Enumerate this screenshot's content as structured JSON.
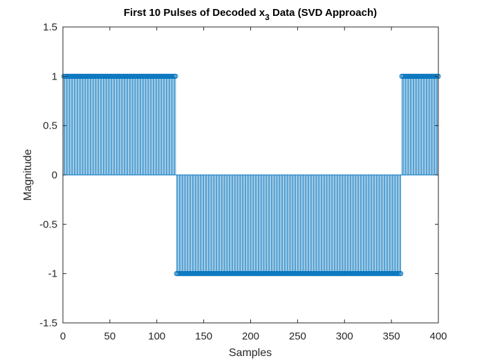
{
  "chart_data": {
    "type": "stem",
    "title": "First 10 Pulses of Decoded x",
    "title_subscript": "3",
    "title_suffix": " Data (SVD Approach)",
    "xlabel": "Samples",
    "ylabel": "Magnitude",
    "xlim": [
      0,
      400
    ],
    "ylim": [
      -1.5,
      1.5
    ],
    "xticks": [
      0,
      50,
      100,
      150,
      200,
      250,
      300,
      350,
      400
    ],
    "yticks": [
      -1.5,
      -1,
      -0.5,
      0,
      0.5,
      1,
      1.5
    ],
    "xtick_labels": [
      "0",
      "50",
      "100",
      "150",
      "200",
      "250",
      "300",
      "350",
      "400"
    ],
    "ytick_labels": [
      "-1.5",
      "-1",
      "-0.5",
      "0",
      "0.5",
      "1",
      "1.5"
    ],
    "grid": false,
    "color": "#0072BD",
    "segments": [
      {
        "x_start": 1,
        "x_end": 120,
        "value": 1
      },
      {
        "x_start": 121,
        "x_end": 360,
        "value": -1
      },
      {
        "x_start": 361,
        "x_end": 400,
        "value": 1
      }
    ]
  }
}
